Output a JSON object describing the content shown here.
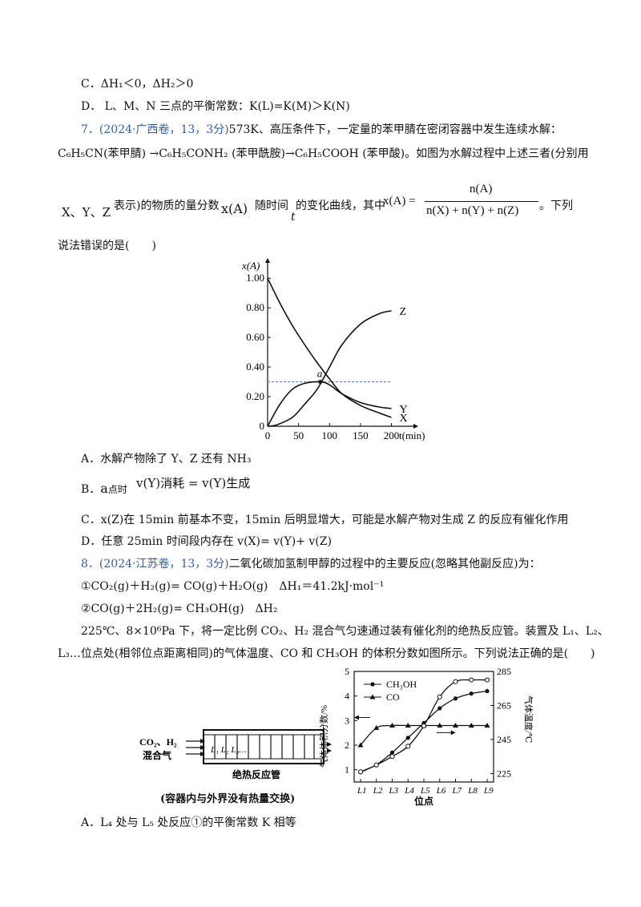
{
  "q6": {
    "optC": "C．ΔH₁＜0，ΔH₂＞0",
    "optD": "D． L、M、N 三点的平衡常数：K(L)=K(M)＞K(N)"
  },
  "q7": {
    "num": "7．",
    "src": "(2024·广西卷，13，3分)",
    "line1": "573K、高压条件下，一定量的苯甲腈在密闭容器中发生连续水解：",
    "line2": "C₆H₅CN(苯甲腈) →C₆H₅CONH₂ (苯甲酰胺)→C₆H₅COOH (苯甲酸)。如图为水解过程中上述三者(分别用",
    "line3a": "X、Y、Z",
    "line3b": "表示)的物质的量分数",
    "line3c": "x(A)",
    "line3d": "随时间",
    "line3e": "t",
    "line3f": "的变化曲线，其中",
    "frac_left": "x(A) =",
    "frac_num": "n(A)",
    "frac_den": "n(X) + n(Y) + n(Z)",
    "line3g": "。下列",
    "line4": "说法错误的是(　　)",
    "optA": "A．水解产物除了 Y、Z 还有 NH₃",
    "optB_a": "B．",
    "optB_b": "a",
    "optB_c": "点时",
    "optB_d": "v(Y)消耗 = v(Y)生成",
    "optC": "C．x(Z)在 15min 前基本不变，15min 后明显增大，可能是水解产物对生成 Z 的反应有催化作用",
    "optD": "D．任意 25min 时间段内存在 v(X)= v(Y)+ v(Z)"
  },
  "q8": {
    "num": "8．",
    "src": "(2024·江苏卷，13，3分)",
    "line1": "二氧化碳加氢制甲醇的过程中的主要反应(忽略其他副反应)为：",
    "r1": "①CO₂(g)＋H₂(g)= CO(g)＋H₂O(g)　ΔH₁＝41.2kJ·mol⁻¹",
    "r2": "②CO(g)＋2H₂(g)= CH₃OH(g)　ΔH₂",
    "line2": "225℃、8×10⁶Pa 下，将一定比例 CO₂、H₂ 混合气匀速通过装有催化剂的绝热反应管。装置及 L₁、L₂、",
    "line3": "L₃…位点处(相邻位点距离相同)的气体温度、CO 和 CH₃OH 的体积分数如图所示。下列说法正确的是(　　)",
    "optA": "A．L₄ 处与 L₅ 处反应①的平衡常数 K 相等"
  },
  "chart_data": [
    {
      "type": "line",
      "ylabel": "x(A)",
      "xlabel": "t(min)",
      "xlim": [
        0,
        220
      ],
      "ylim": [
        0,
        1.05
      ],
      "xticks": [
        "0",
        "50",
        "100",
        "150",
        "200"
      ],
      "yticks": [
        "0",
        "0.20",
        "0.40",
        "0.60",
        "0.80",
        "1.00"
      ],
      "annotation": "a",
      "reference_line_y": 0.3,
      "series": [
        {
          "name": "Z",
          "x": [
            0,
            15,
            40,
            60,
            80,
            100,
            120,
            150,
            180,
            200
          ],
          "values": [
            0,
            0.01,
            0.06,
            0.15,
            0.25,
            0.4,
            0.55,
            0.69,
            0.76,
            0.78
          ]
        },
        {
          "name": "Y",
          "x": [
            0,
            20,
            40,
            60,
            85,
            100,
            120,
            150,
            180,
            200
          ],
          "values": [
            0,
            0.15,
            0.25,
            0.29,
            0.3,
            0.28,
            0.22,
            0.16,
            0.13,
            0.12
          ]
        },
        {
          "name": "X",
          "x": [
            0,
            20,
            40,
            60,
            80,
            100,
            120,
            150,
            180,
            200
          ],
          "values": [
            1.0,
            0.83,
            0.68,
            0.55,
            0.43,
            0.32,
            0.22,
            0.14,
            0.09,
            0.06
          ]
        }
      ]
    },
    {
      "type": "line",
      "xlabel": "位点",
      "ylabel": "气体体积分数/%",
      "y2label": "气体温度/℃",
      "ylim": [
        0.5,
        5
      ],
      "y2lim": [
        220,
        285
      ],
      "categories": [
        "L1",
        "L2",
        "L3",
        "L4",
        "L5",
        "L6",
        "L7",
        "L8",
        "L9"
      ],
      "yticks": [
        "1",
        "2",
        "3",
        "4",
        "5"
      ],
      "y2ticks": [
        "225",
        "245",
        "265",
        "285"
      ],
      "series": [
        {
          "name": "CH₃OH",
          "values": [
            0.9,
            1.2,
            1.7,
            2.3,
            2.9,
            3.5,
            3.9,
            4.1,
            4.2
          ]
        },
        {
          "name": "CO",
          "values": [
            2.0,
            2.7,
            2.8,
            2.8,
            2.8,
            2.8,
            2.8,
            2.8,
            2.8
          ]
        },
        {
          "name": "温度",
          "values": [
            226,
            230,
            235,
            241,
            253,
            270,
            279,
            280,
            280
          ]
        }
      ]
    }
  ],
  "apparatus": {
    "gas_in1": "CO₂、H₂",
    "gas_in2": "混合气",
    "positions": "L₁ L₂ L₃…",
    "tube_label": "绝热反应管",
    "caption": "(容器内与外界没有热量交换)"
  }
}
